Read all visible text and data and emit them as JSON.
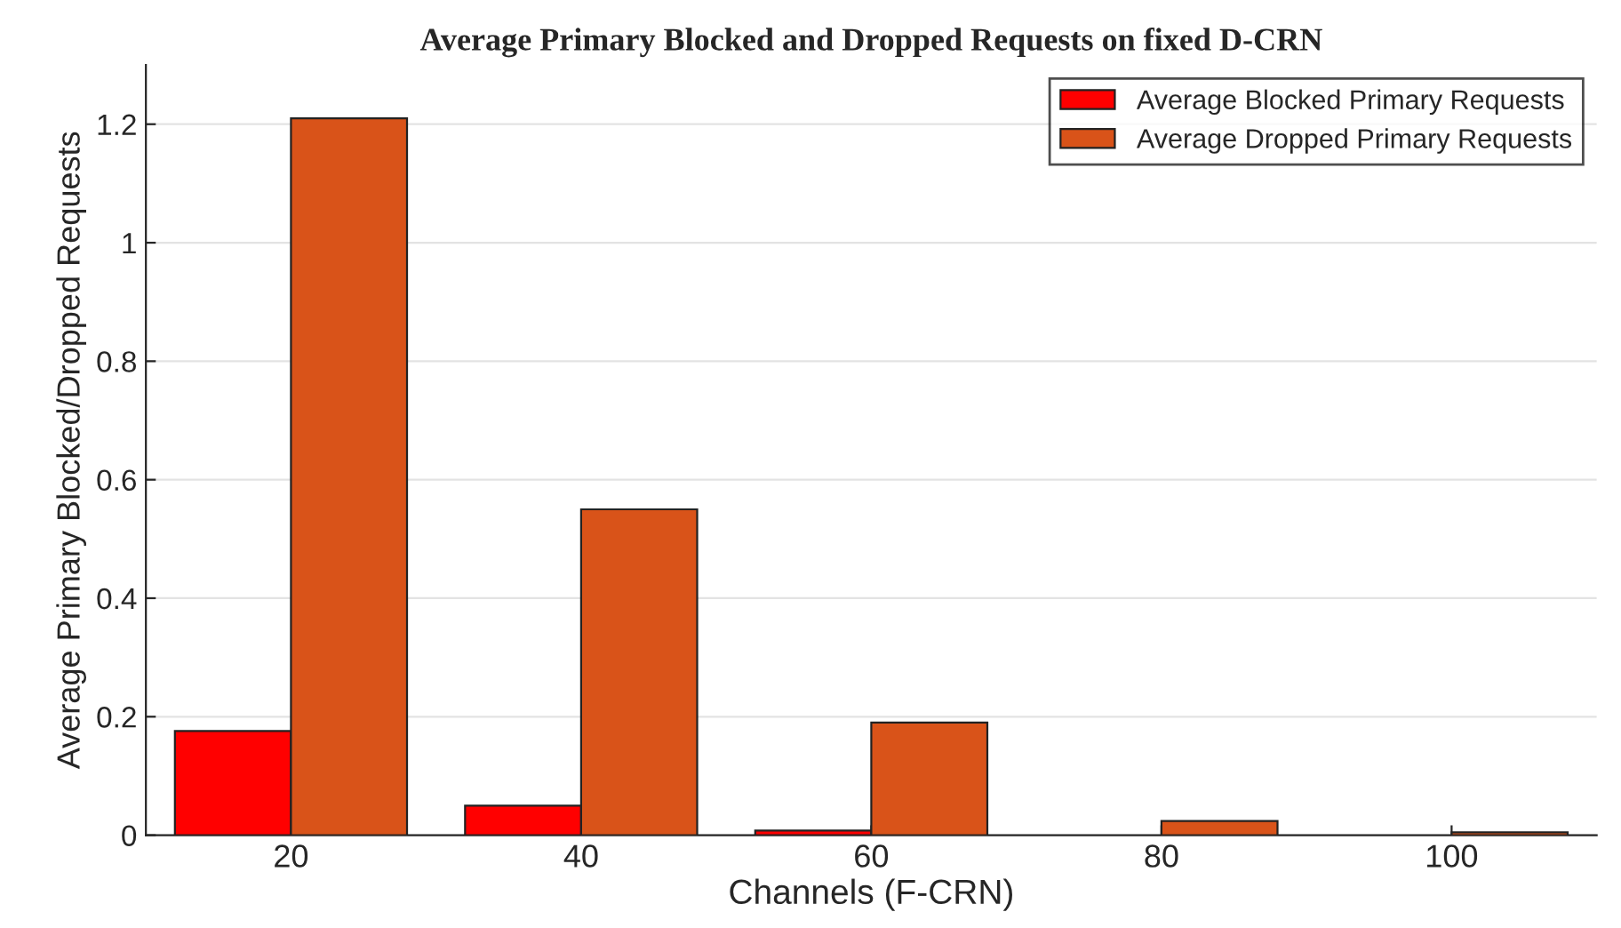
{
  "chart_data": {
    "type": "bar",
    "title": "Average Primary Blocked and Dropped Requests on fixed D-CRN",
    "xlabel": "Channels (F-CRN)",
    "ylabel": "Average Primary Blocked/Dropped Requests",
    "categories": [
      "20",
      "40",
      "60",
      "80",
      "100"
    ],
    "series": [
      {
        "name": "Average Blocked Primary Requests",
        "color": "#ff0000",
        "values": [
          0.176,
          0.05,
          0.008,
          null,
          null
        ]
      },
      {
        "name": "Average Dropped Primary Requests",
        "color": "#d95319",
        "values": [
          1.21,
          0.55,
          0.19,
          0.024,
          0.005
        ]
      }
    ],
    "ylim": [
      0,
      1.3
    ],
    "yticks": [
      0,
      0.2,
      0.4,
      0.6,
      0.8,
      1,
      1.2
    ],
    "grid": "y",
    "legend": "top right"
  }
}
